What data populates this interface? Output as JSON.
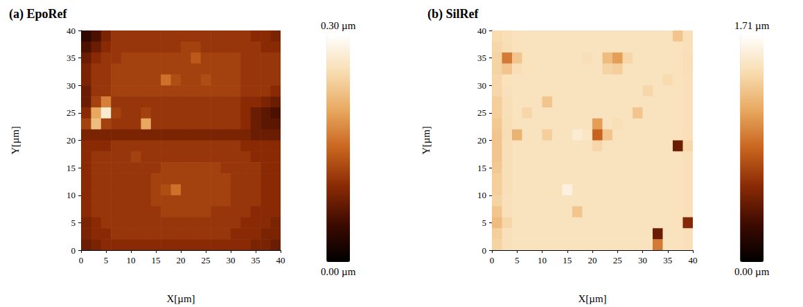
{
  "chart_data": [
    {
      "type": "heatmap",
      "title": "(a) EpoRef",
      "x_label": "X[µm]",
      "y_label": "Y[µm]",
      "xlim": [
        0,
        40
      ],
      "ylim": [
        0,
        40
      ],
      "xticks": [
        0,
        5,
        10,
        15,
        20,
        25,
        30,
        35,
        40
      ],
      "yticks": [
        0,
        5,
        10,
        15,
        20,
        25,
        30,
        35,
        40
      ],
      "x": [
        1,
        3,
        5,
        7,
        9,
        11,
        13,
        15,
        17,
        19,
        21,
        23,
        25,
        27,
        29,
        31,
        33,
        35,
        37,
        39
      ],
      "y": [
        39,
        37,
        35,
        33,
        31,
        29,
        27,
        25,
        23,
        21,
        19,
        17,
        15,
        13,
        11,
        9,
        7,
        5,
        3,
        1
      ],
      "z": [
        [
          0.04,
          0.06,
          0.09,
          0.11,
          0.11,
          0.11,
          0.11,
          0.11,
          0.11,
          0.11,
          0.11,
          0.11,
          0.11,
          0.11,
          0.11,
          0.11,
          0.11,
          0.1,
          0.1,
          0.09
        ],
        [
          0.06,
          0.08,
          0.1,
          0.11,
          0.11,
          0.11,
          0.11,
          0.11,
          0.11,
          0.11,
          0.12,
          0.12,
          0.11,
          0.11,
          0.11,
          0.11,
          0.11,
          0.11,
          0.1,
          0.1
        ],
        [
          0.08,
          0.1,
          0.11,
          0.11,
          0.12,
          0.12,
          0.12,
          0.12,
          0.12,
          0.12,
          0.12,
          0.14,
          0.12,
          0.12,
          0.12,
          0.12,
          0.11,
          0.11,
          0.11,
          0.11
        ],
        [
          0.09,
          0.11,
          0.11,
          0.12,
          0.12,
          0.12,
          0.12,
          0.12,
          0.12,
          0.12,
          0.12,
          0.12,
          0.12,
          0.12,
          0.12,
          0.12,
          0.11,
          0.11,
          0.11,
          0.11
        ],
        [
          0.09,
          0.11,
          0.11,
          0.12,
          0.12,
          0.12,
          0.12,
          0.12,
          0.16,
          0.13,
          0.12,
          0.12,
          0.13,
          0.12,
          0.12,
          0.12,
          0.11,
          0.11,
          0.11,
          0.11
        ],
        [
          0.08,
          0.11,
          0.11,
          0.12,
          0.12,
          0.12,
          0.12,
          0.12,
          0.12,
          0.12,
          0.12,
          0.12,
          0.12,
          0.12,
          0.12,
          0.12,
          0.11,
          0.11,
          0.11,
          0.1
        ],
        [
          0.08,
          0.12,
          0.17,
          0.11,
          0.11,
          0.11,
          0.11,
          0.11,
          0.11,
          0.11,
          0.11,
          0.11,
          0.11,
          0.11,
          0.11,
          0.11,
          0.1,
          0.1,
          0.09,
          0.08
        ],
        [
          0.1,
          0.2,
          0.27,
          0.12,
          0.11,
          0.11,
          0.12,
          0.11,
          0.11,
          0.11,
          0.11,
          0.11,
          0.11,
          0.11,
          0.11,
          0.11,
          0.1,
          0.08,
          0.07,
          0.06
        ],
        [
          0.12,
          0.22,
          0.12,
          0.11,
          0.11,
          0.11,
          0.2,
          0.11,
          0.11,
          0.11,
          0.11,
          0.11,
          0.11,
          0.11,
          0.11,
          0.11,
          0.1,
          0.08,
          0.07,
          0.07
        ],
        [
          0.09,
          0.09,
          0.09,
          0.09,
          0.09,
          0.09,
          0.09,
          0.09,
          0.09,
          0.09,
          0.09,
          0.09,
          0.09,
          0.09,
          0.09,
          0.09,
          0.09,
          0.08,
          0.08,
          0.08
        ],
        [
          0.1,
          0.1,
          0.1,
          0.11,
          0.11,
          0.11,
          0.11,
          0.11,
          0.11,
          0.11,
          0.11,
          0.11,
          0.11,
          0.11,
          0.11,
          0.11,
          0.1,
          0.1,
          0.1,
          0.1
        ],
        [
          0.1,
          0.11,
          0.11,
          0.11,
          0.11,
          0.12,
          0.11,
          0.11,
          0.11,
          0.11,
          0.11,
          0.11,
          0.11,
          0.11,
          0.11,
          0.11,
          0.11,
          0.1,
          0.1,
          0.1
        ],
        [
          0.1,
          0.11,
          0.11,
          0.11,
          0.11,
          0.11,
          0.11,
          0.11,
          0.12,
          0.12,
          0.12,
          0.12,
          0.12,
          0.12,
          0.11,
          0.11,
          0.11,
          0.11,
          0.1,
          0.1
        ],
        [
          0.1,
          0.11,
          0.11,
          0.11,
          0.11,
          0.11,
          0.11,
          0.12,
          0.12,
          0.12,
          0.12,
          0.12,
          0.12,
          0.12,
          0.12,
          0.11,
          0.11,
          0.11,
          0.1,
          0.1
        ],
        [
          0.1,
          0.11,
          0.11,
          0.11,
          0.11,
          0.11,
          0.11,
          0.12,
          0.13,
          0.16,
          0.12,
          0.12,
          0.12,
          0.12,
          0.12,
          0.11,
          0.11,
          0.11,
          0.1,
          0.1
        ],
        [
          0.1,
          0.11,
          0.11,
          0.11,
          0.11,
          0.11,
          0.11,
          0.12,
          0.12,
          0.12,
          0.12,
          0.12,
          0.12,
          0.12,
          0.12,
          0.11,
          0.11,
          0.11,
          0.1,
          0.1
        ],
        [
          0.1,
          0.11,
          0.11,
          0.11,
          0.11,
          0.11,
          0.11,
          0.11,
          0.12,
          0.12,
          0.12,
          0.12,
          0.12,
          0.11,
          0.11,
          0.11,
          0.11,
          0.1,
          0.1,
          0.1
        ],
        [
          0.09,
          0.1,
          0.11,
          0.11,
          0.11,
          0.11,
          0.11,
          0.11,
          0.11,
          0.11,
          0.11,
          0.11,
          0.11,
          0.11,
          0.11,
          0.11,
          0.1,
          0.1,
          0.1,
          0.09
        ],
        [
          0.09,
          0.1,
          0.1,
          0.11,
          0.11,
          0.11,
          0.11,
          0.11,
          0.11,
          0.11,
          0.11,
          0.11,
          0.11,
          0.11,
          0.11,
          0.1,
          0.1,
          0.1,
          0.09,
          0.09
        ],
        [
          0.08,
          0.09,
          0.1,
          0.1,
          0.1,
          0.1,
          0.1,
          0.1,
          0.1,
          0.1,
          0.1,
          0.1,
          0.1,
          0.1,
          0.1,
          0.1,
          0.1,
          0.09,
          0.09,
          0.08
        ]
      ],
      "zlim": [
        0,
        0.3
      ],
      "zticks": [
        {
          "value": 0,
          "label": "0.00 µm"
        },
        {
          "value": 0.3,
          "label": "0.30 µm"
        }
      ]
    },
    {
      "type": "heatmap",
      "title": "(b) SilRef",
      "x_label": "X[µm]",
      "y_label": "Y[µm]",
      "xlim": [
        0,
        40
      ],
      "ylim": [
        0,
        40
      ],
      "xticks": [
        0,
        5,
        10,
        15,
        20,
        25,
        30,
        35,
        40
      ],
      "yticks": [
        0,
        5,
        10,
        15,
        20,
        25,
        30,
        35,
        40
      ],
      "x": [
        1,
        3,
        5,
        7,
        9,
        11,
        13,
        15,
        17,
        19,
        21,
        23,
        25,
        27,
        29,
        31,
        33,
        35,
        37,
        39
      ],
      "y": [
        39,
        37,
        35,
        33,
        31,
        29,
        27,
        25,
        23,
        21,
        19,
        17,
        15,
        13,
        11,
        9,
        7,
        5,
        3,
        1
      ],
      "z": [
        [
          1.42,
          1.45,
          1.47,
          1.48,
          1.48,
          1.48,
          1.48,
          1.48,
          1.48,
          1.48,
          1.48,
          1.48,
          1.48,
          1.48,
          1.48,
          1.48,
          1.48,
          1.48,
          1.3,
          1.46
        ],
        [
          1.4,
          1.44,
          1.47,
          1.48,
          1.48,
          1.48,
          1.48,
          1.48,
          1.48,
          1.48,
          1.48,
          1.48,
          1.48,
          1.48,
          1.48,
          1.48,
          1.48,
          1.48,
          1.47,
          1.46
        ],
        [
          1.38,
          0.95,
          1.3,
          1.47,
          1.48,
          1.48,
          1.48,
          1.48,
          1.48,
          1.45,
          1.48,
          1.25,
          1.1,
          1.4,
          1.48,
          1.48,
          1.48,
          1.48,
          1.47,
          1.45
        ],
        [
          1.38,
          1.3,
          1.45,
          1.47,
          1.48,
          1.48,
          1.48,
          1.48,
          1.48,
          1.48,
          1.48,
          1.38,
          1.35,
          1.48,
          1.48,
          1.48,
          1.48,
          1.48,
          1.47,
          1.45
        ],
        [
          1.4,
          1.47,
          1.48,
          1.48,
          1.48,
          1.48,
          1.48,
          1.48,
          1.48,
          1.48,
          1.48,
          1.48,
          1.48,
          1.48,
          1.48,
          1.48,
          1.48,
          1.42,
          1.47,
          1.46
        ],
        [
          1.4,
          1.46,
          1.48,
          1.48,
          1.48,
          1.48,
          1.48,
          1.48,
          1.48,
          1.48,
          1.48,
          1.48,
          1.48,
          1.48,
          1.48,
          1.4,
          1.48,
          1.48,
          1.47,
          1.46
        ],
        [
          1.35,
          1.45,
          1.48,
          1.48,
          1.48,
          1.3,
          1.48,
          1.48,
          1.48,
          1.48,
          1.48,
          1.48,
          1.48,
          1.48,
          1.48,
          1.48,
          1.48,
          1.48,
          1.47,
          1.46
        ],
        [
          1.35,
          1.45,
          1.48,
          1.4,
          1.48,
          1.48,
          1.48,
          1.48,
          1.48,
          1.48,
          1.48,
          1.48,
          1.48,
          1.48,
          1.3,
          1.48,
          1.48,
          1.48,
          1.47,
          1.46
        ],
        [
          1.32,
          1.44,
          1.48,
          1.48,
          1.48,
          1.48,
          1.48,
          1.48,
          1.48,
          1.48,
          1.1,
          1.48,
          1.45,
          1.48,
          1.48,
          1.48,
          1.48,
          1.48,
          1.47,
          1.46
        ],
        [
          1.3,
          1.44,
          1.2,
          1.48,
          1.48,
          1.35,
          1.48,
          1.48,
          1.55,
          1.5,
          0.85,
          1.3,
          1.48,
          1.48,
          1.48,
          1.48,
          1.48,
          1.48,
          1.47,
          1.46
        ],
        [
          1.3,
          1.45,
          1.48,
          1.48,
          1.48,
          1.48,
          1.48,
          1.48,
          1.48,
          1.48,
          1.4,
          1.48,
          1.48,
          1.48,
          1.48,
          1.48,
          1.48,
          1.48,
          0.45,
          1.4
        ],
        [
          1.3,
          1.45,
          1.48,
          1.48,
          1.48,
          1.48,
          1.48,
          1.48,
          1.48,
          1.48,
          1.48,
          1.48,
          1.48,
          1.48,
          1.48,
          1.48,
          1.48,
          1.48,
          1.47,
          1.46
        ],
        [
          1.32,
          1.45,
          1.48,
          1.48,
          1.48,
          1.48,
          1.48,
          1.48,
          1.48,
          1.48,
          1.48,
          1.48,
          1.48,
          1.48,
          1.48,
          1.48,
          1.48,
          1.48,
          1.47,
          1.46
        ],
        [
          1.35,
          1.45,
          1.48,
          1.48,
          1.48,
          1.48,
          1.48,
          1.48,
          1.48,
          1.48,
          1.48,
          1.48,
          1.48,
          1.48,
          1.48,
          1.48,
          1.48,
          1.48,
          1.47,
          1.46
        ],
        [
          1.35,
          1.45,
          1.48,
          1.48,
          1.48,
          1.48,
          1.48,
          1.6,
          1.48,
          1.48,
          1.48,
          1.48,
          1.48,
          1.48,
          1.48,
          1.48,
          1.48,
          1.48,
          1.47,
          1.46
        ],
        [
          1.38,
          1.46,
          1.48,
          1.48,
          1.48,
          1.48,
          1.48,
          1.48,
          1.48,
          1.48,
          1.48,
          1.48,
          1.48,
          1.48,
          1.48,
          1.48,
          1.48,
          1.48,
          1.47,
          1.46
        ],
        [
          1.3,
          1.46,
          1.48,
          1.48,
          1.48,
          1.48,
          1.48,
          1.48,
          1.3,
          1.48,
          1.48,
          1.48,
          1.48,
          1.48,
          1.48,
          1.48,
          1.48,
          1.48,
          1.47,
          1.46
        ],
        [
          1.25,
          1.4,
          1.48,
          1.48,
          1.48,
          1.48,
          1.48,
          1.48,
          1.48,
          1.48,
          1.48,
          1.48,
          1.48,
          1.48,
          1.48,
          1.48,
          1.48,
          1.48,
          1.47,
          0.55
        ],
        [
          1.35,
          1.46,
          1.48,
          1.48,
          1.48,
          1.48,
          1.48,
          1.48,
          1.48,
          1.48,
          1.48,
          1.48,
          1.48,
          1.48,
          1.48,
          1.48,
          0.45,
          1.48,
          1.47,
          1.46
        ],
        [
          1.38,
          1.46,
          1.48,
          1.48,
          1.48,
          1.48,
          1.48,
          1.48,
          1.48,
          1.48,
          1.48,
          1.48,
          1.48,
          1.48,
          1.48,
          1.48,
          0.95,
          1.48,
          1.47,
          1.46
        ]
      ],
      "zlim": [
        0,
        1.71
      ],
      "zticks": [
        {
          "value": 0,
          "label": "0.00 µm"
        },
        {
          "value": 1.71,
          "label": "1.71 µm"
        }
      ]
    }
  ]
}
